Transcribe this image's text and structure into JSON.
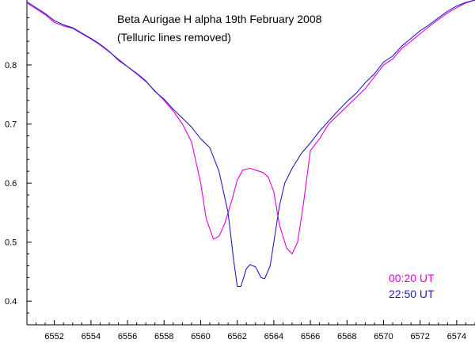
{
  "chart_data": {
    "type": "line",
    "title": "Beta Aurigae  H alpha 19th February 2008",
    "subtitle": "(Telluric lines removed)",
    "xlabel": "",
    "ylabel": "",
    "xlim": [
      6550.5,
      6575
    ],
    "ylim": [
      0.36,
      0.91
    ],
    "x_ticks": [
      6552,
      6554,
      6556,
      6558,
      6560,
      6562,
      6564,
      6566,
      6568,
      6570,
      6572,
      6574
    ],
    "x_tick_labels": [
      "6552",
      "6554",
      "6556",
      "6558",
      "6560",
      "6562",
      "6564",
      "6566",
      "6568",
      "6570",
      "6572",
      "6574"
    ],
    "y_ticks": [
      0.4,
      0.5,
      0.6,
      0.7,
      0.8
    ],
    "y_tick_labels": [
      "0.4",
      "0.5",
      "0.6",
      "0.7",
      "0.8"
    ],
    "grid": false,
    "legend_placement": "bottom-right",
    "series": [
      {
        "name": "00:20 UT",
        "color": "#e000e0",
        "points": [
          [
            6550.5,
            0.905
          ],
          [
            6551.0,
            0.895
          ],
          [
            6551.5,
            0.885
          ],
          [
            6552.0,
            0.872
          ],
          [
            6552.5,
            0.866
          ],
          [
            6553.0,
            0.862
          ],
          [
            6553.5,
            0.853
          ],
          [
            6554.0,
            0.844
          ],
          [
            6554.5,
            0.834
          ],
          [
            6555.0,
            0.822
          ],
          [
            6555.5,
            0.81
          ],
          [
            6556.0,
            0.797
          ],
          [
            6556.5,
            0.785
          ],
          [
            6557.0,
            0.772
          ],
          [
            6557.5,
            0.756
          ],
          [
            6558.0,
            0.74
          ],
          [
            6558.5,
            0.722
          ],
          [
            6559.0,
            0.7
          ],
          [
            6559.5,
            0.67
          ],
          [
            6560.0,
            0.6
          ],
          [
            6560.3,
            0.54
          ],
          [
            6560.7,
            0.505
          ],
          [
            6561.0,
            0.51
          ],
          [
            6561.3,
            0.53
          ],
          [
            6561.7,
            0.57
          ],
          [
            6562.0,
            0.605
          ],
          [
            6562.3,
            0.622
          ],
          [
            6562.7,
            0.625
          ],
          [
            6563.0,
            0.622
          ],
          [
            6563.4,
            0.618
          ],
          [
            6563.7,
            0.61
          ],
          [
            6564.0,
            0.585
          ],
          [
            6564.3,
            0.53
          ],
          [
            6564.7,
            0.49
          ],
          [
            6565.0,
            0.48
          ],
          [
            6565.3,
            0.5
          ],
          [
            6565.6,
            0.56
          ],
          [
            6566.0,
            0.655
          ],
          [
            6566.5,
            0.675
          ],
          [
            6567.0,
            0.7
          ],
          [
            6567.5,
            0.715
          ],
          [
            6568.0,
            0.73
          ],
          [
            6568.5,
            0.745
          ],
          [
            6569.0,
            0.76
          ],
          [
            6569.5,
            0.78
          ],
          [
            6570.0,
            0.8
          ],
          [
            6570.5,
            0.81
          ],
          [
            6571.0,
            0.828
          ],
          [
            6571.5,
            0.84
          ],
          [
            6572.0,
            0.853
          ],
          [
            6572.5,
            0.865
          ],
          [
            6573.0,
            0.877
          ],
          [
            6573.5,
            0.888
          ],
          [
            6574.0,
            0.897
          ],
          [
            6574.5,
            0.905
          ],
          [
            6575.0,
            0.91
          ]
        ]
      },
      {
        "name": "22:50 UT",
        "color": "#2020c0",
        "points": [
          [
            6550.5,
            0.907
          ],
          [
            6551.0,
            0.897
          ],
          [
            6551.5,
            0.887
          ],
          [
            6552.0,
            0.875
          ],
          [
            6552.5,
            0.868
          ],
          [
            6553.0,
            0.863
          ],
          [
            6553.5,
            0.854
          ],
          [
            6554.0,
            0.845
          ],
          [
            6554.5,
            0.835
          ],
          [
            6555.0,
            0.823
          ],
          [
            6555.5,
            0.808
          ],
          [
            6556.0,
            0.797
          ],
          [
            6556.5,
            0.786
          ],
          [
            6557.0,
            0.773
          ],
          [
            6557.5,
            0.755
          ],
          [
            6558.0,
            0.742
          ],
          [
            6558.5,
            0.725
          ],
          [
            6559.0,
            0.71
          ],
          [
            6559.5,
            0.695
          ],
          [
            6560.0,
            0.675
          ],
          [
            6560.5,
            0.66
          ],
          [
            6561.0,
            0.62
          ],
          [
            6561.5,
            0.55
          ],
          [
            6561.8,
            0.47
          ],
          [
            6562.0,
            0.425
          ],
          [
            6562.2,
            0.425
          ],
          [
            6562.5,
            0.455
          ],
          [
            6562.7,
            0.462
          ],
          [
            6563.0,
            0.458
          ],
          [
            6563.3,
            0.44
          ],
          [
            6563.5,
            0.438
          ],
          [
            6563.8,
            0.46
          ],
          [
            6564.0,
            0.5
          ],
          [
            6564.3,
            0.56
          ],
          [
            6564.6,
            0.6
          ],
          [
            6565.0,
            0.625
          ],
          [
            6565.5,
            0.65
          ],
          [
            6566.0,
            0.668
          ],
          [
            6566.5,
            0.688
          ],
          [
            6567.0,
            0.705
          ],
          [
            6567.5,
            0.722
          ],
          [
            6568.0,
            0.738
          ],
          [
            6568.5,
            0.752
          ],
          [
            6569.0,
            0.77
          ],
          [
            6569.5,
            0.785
          ],
          [
            6570.0,
            0.805
          ],
          [
            6570.5,
            0.815
          ],
          [
            6571.0,
            0.832
          ],
          [
            6571.5,
            0.845
          ],
          [
            6572.0,
            0.858
          ],
          [
            6572.5,
            0.868
          ],
          [
            6573.0,
            0.88
          ],
          [
            6573.5,
            0.891
          ],
          [
            6574.0,
            0.9
          ],
          [
            6574.5,
            0.906
          ],
          [
            6575.0,
            0.91
          ]
        ]
      }
    ]
  }
}
